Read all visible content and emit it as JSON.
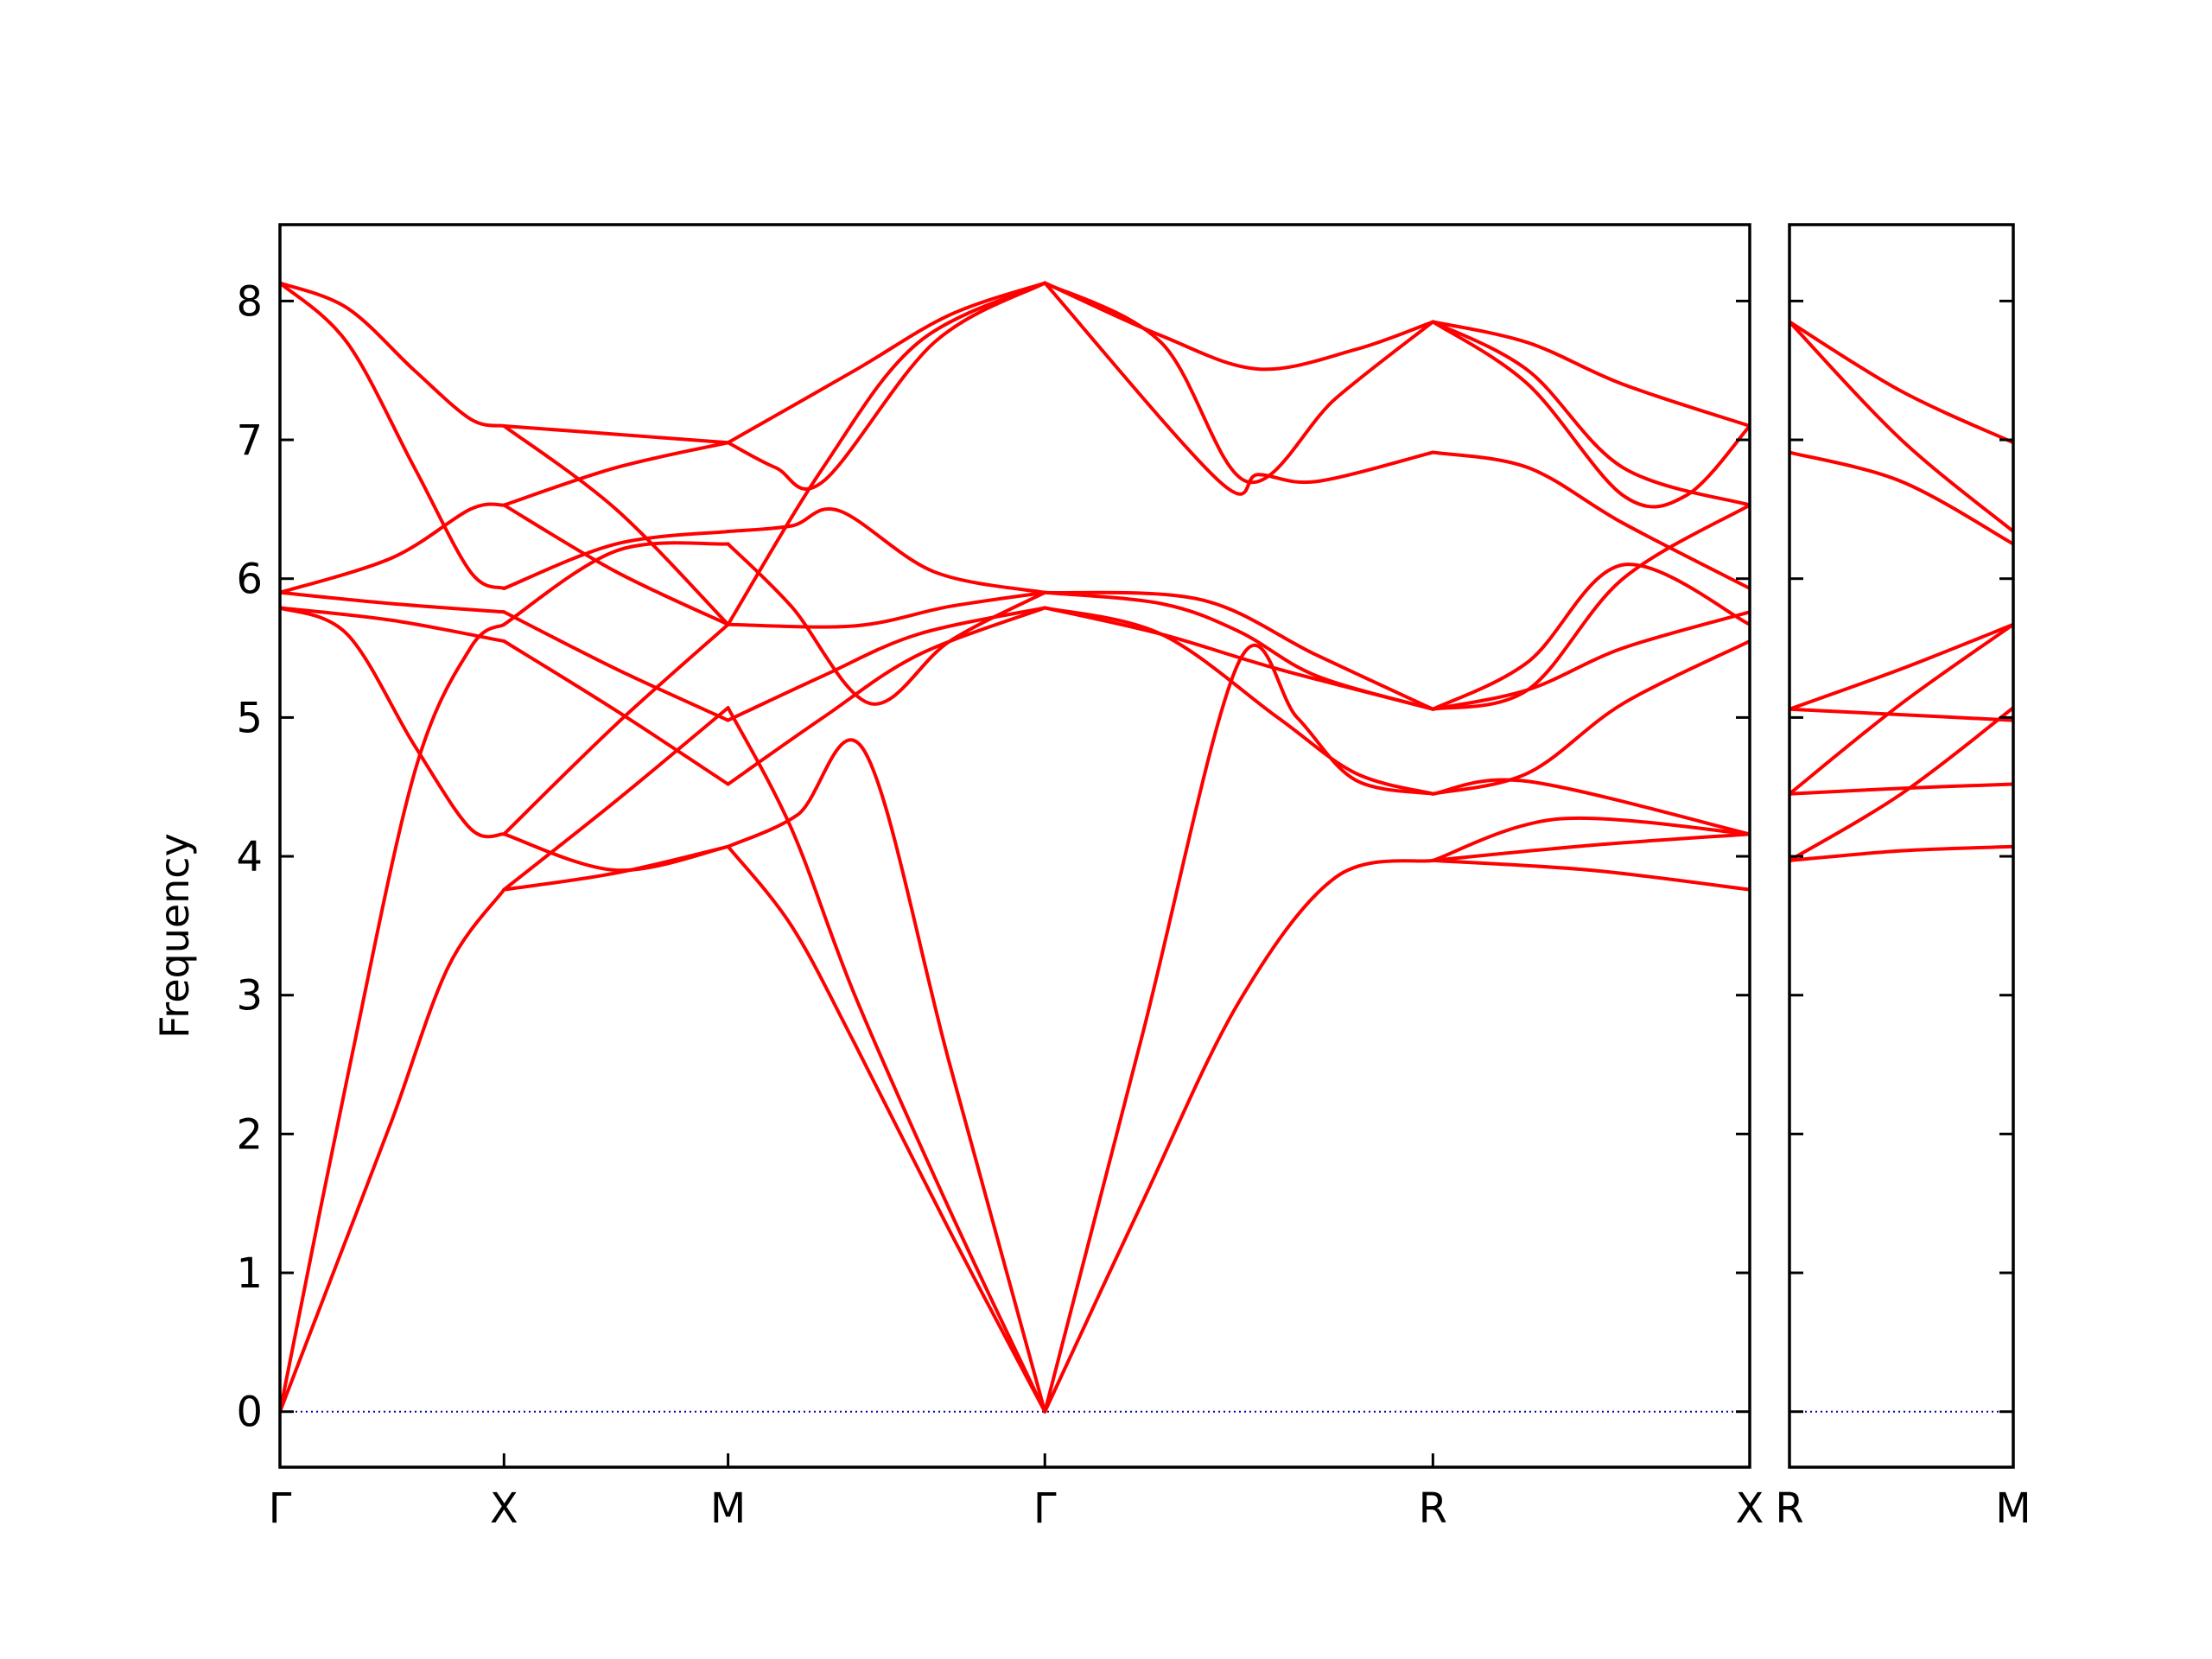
{
  "chart_data": {
    "type": "line",
    "title": "",
    "ylabel": "Frequency",
    "ylim": [
      -0.4,
      8.55
    ],
    "yticks": [
      0,
      1,
      2,
      3,
      4,
      5,
      6,
      7,
      8
    ],
    "colors": {
      "band": "#ff0000",
      "zero_line": "#0000aa"
    },
    "grid": false,
    "panels": [
      {
        "id": "left",
        "path_labels": [
          "Γ",
          "X",
          "M",
          "Γ",
          "R",
          "X"
        ],
        "segment_lengths": [
          1,
          1,
          1.414,
          1.732,
          1.414
        ],
        "bands": [
          {
            "segment": "Γ-X",
            "x": [
              0,
              0.25,
              0.5,
              0.75,
              1
            ],
            "y": [
              0,
              1.05,
              2.1,
              3.2,
              3.76
            ]
          },
          {
            "segment": "Γ-X",
            "x": [
              0,
              0.3,
              0.6,
              0.85,
              1
            ],
            "y": [
              0,
              2.4,
              4.6,
              5.5,
              5.67
            ]
          },
          {
            "segment": "Γ-X",
            "x": [
              0,
              0.3,
              0.6,
              0.85,
              1
            ],
            "y": [
              5.79,
              5.6,
              4.8,
              4.2,
              4.16
            ]
          },
          {
            "segment": "Γ-X",
            "x": [
              0,
              0.5,
              1
            ],
            "y": [
              5.79,
              5.7,
              5.55
            ]
          },
          {
            "segment": "Γ-X",
            "x": [
              0,
              0.5,
              1
            ],
            "y": [
              5.9,
              5.82,
              5.76
            ]
          },
          {
            "segment": "Γ-X",
            "x": [
              0,
              0.5,
              0.85,
              1
            ],
            "y": [
              5.9,
              6.15,
              6.5,
              6.53
            ]
          },
          {
            "segment": "Γ-X",
            "x": [
              0,
              0.3,
              0.6,
              0.85,
              1
            ],
            "y": [
              8.13,
              7.7,
              6.8,
              6.05,
              5.93
            ]
          },
          {
            "segment": "Γ-X",
            "x": [
              0,
              0.3,
              0.6,
              0.85,
              1
            ],
            "y": [
              8.13,
              7.95,
              7.5,
              7.15,
              7.1
            ]
          },
          {
            "segment": "X-M",
            "x": [
              0,
              0.5,
              1
            ],
            "y": [
              3.76,
              3.88,
              4.07
            ]
          },
          {
            "segment": "X-M",
            "x": [
              0,
              0.5,
              1
            ],
            "y": [
              4.16,
              3.9,
              4.07
            ]
          },
          {
            "segment": "X-M",
            "x": [
              0,
              0.5,
              1
            ],
            "y": [
              3.76,
              4.4,
              5.07
            ]
          },
          {
            "segment": "X-M",
            "x": [
              0,
              0.5,
              1
            ],
            "y": [
              4.16,
              4.95,
              5.67
            ]
          },
          {
            "segment": "X-M",
            "x": [
              0,
              0.5,
              1
            ],
            "y": [
              5.55,
              5.05,
              4.52
            ]
          },
          {
            "segment": "X-M",
            "x": [
              0,
              0.5,
              1
            ],
            "y": [
              5.76,
              5.35,
              4.98
            ]
          },
          {
            "segment": "X-M",
            "x": [
              0,
              0.5,
              1
            ],
            "y": [
              5.67,
              6.2,
              6.25
            ]
          },
          {
            "segment": "X-M",
            "x": [
              0,
              0.5,
              1
            ],
            "y": [
              6.53,
              6.05,
              5.67
            ]
          },
          {
            "segment": "X-M",
            "x": [
              0,
              0.5,
              1
            ],
            "y": [
              5.93,
              6.25,
              6.34
            ]
          },
          {
            "segment": "X-M",
            "x": [
              0,
              0.5,
              1
            ],
            "y": [
              6.53,
              6.8,
              6.98
            ]
          },
          {
            "segment": "X-M",
            "x": [
              0,
              0.5,
              1
            ],
            "y": [
              7.1,
              6.5,
              5.67
            ]
          },
          {
            "segment": "X-M",
            "x": [
              0,
              0.5,
              1
            ],
            "y": [
              7.1,
              7.04,
              6.98
            ]
          },
          {
            "segment": "M-Γ",
            "x": [
              0,
              0.2,
              0.4,
              0.7,
              1
            ],
            "y": [
              4.07,
              3.5,
              2.65,
              1.3,
              0
            ]
          },
          {
            "segment": "M-Γ",
            "x": [
              0,
              0.2,
              0.4,
              0.7,
              1
            ],
            "y": [
              5.07,
              4.2,
              3.0,
              1.45,
              0
            ]
          },
          {
            "segment": "M-Γ",
            "x": [
              0,
              0.22,
              0.43,
              0.7,
              1
            ],
            "y": [
              4.07,
              4.3,
              4.76,
              2.5,
              0
            ]
          },
          {
            "segment": "M-Γ",
            "x": [
              0,
              0.3,
              0.6,
              1
            ],
            "y": [
              4.52,
              5.0,
              5.45,
              5.79
            ]
          },
          {
            "segment": "M-Γ",
            "x": [
              0,
              0.3,
              0.6,
              1
            ],
            "y": [
              4.98,
              5.3,
              5.6,
              5.79
            ]
          },
          {
            "segment": "M-Γ",
            "x": [
              0,
              0.2,
              0.45,
              0.7,
              1
            ],
            "y": [
              6.25,
              5.8,
              5.1,
              5.55,
              5.9
            ]
          },
          {
            "segment": "M-Γ",
            "x": [
              0,
              0.4,
              0.7,
              1
            ],
            "y": [
              5.67,
              5.66,
              5.8,
              5.9
            ]
          },
          {
            "segment": "M-Γ",
            "x": [
              0,
              0.3,
              0.6,
              1
            ],
            "y": [
              5.67,
              6.8,
              7.7,
              8.13
            ]
          },
          {
            "segment": "M-Γ",
            "x": [
              0,
              0.2,
              0.35,
              0.65,
              1
            ],
            "y": [
              6.34,
              6.38,
              6.49,
              6.05,
              5.9
            ]
          },
          {
            "segment": "M-Γ",
            "x": [
              0,
              0.15,
              0.3,
              0.65,
              1
            ],
            "y": [
              6.98,
              6.8,
              6.7,
              7.7,
              8.13
            ]
          },
          {
            "segment": "M-Γ",
            "x": [
              0,
              0.4,
              0.7,
              1
            ],
            "y": [
              6.98,
              7.5,
              7.9,
              8.13
            ]
          },
          {
            "segment": "Γ-R",
            "x": [
              0,
              0.25,
              0.5,
              0.75,
              1
            ],
            "y": [
              0,
              1.5,
              2.95,
              3.85,
              3.97
            ]
          },
          {
            "segment": "Γ-R",
            "x": [
              0,
              0.25,
              0.5,
              0.65,
              0.8,
              1
            ],
            "y": [
              0,
              2.7,
              5.4,
              5.0,
              4.55,
              4.45
            ]
          },
          {
            "segment": "Γ-R",
            "x": [
              0,
              0.3,
              0.6,
              0.8,
              1
            ],
            "y": [
              5.79,
              5.6,
              5.0,
              4.6,
              4.45
            ]
          },
          {
            "segment": "Γ-R",
            "x": [
              0,
              0.3,
              0.6,
              1
            ],
            "y": [
              5.79,
              5.6,
              5.35,
              5.06
            ]
          },
          {
            "segment": "Γ-R",
            "x": [
              0,
              0.3,
              0.5,
              0.7,
              1
            ],
            "y": [
              5.9,
              5.82,
              5.62,
              5.3,
              5.06
            ]
          },
          {
            "segment": "Γ-R",
            "x": [
              0,
              0.4,
              0.7,
              1
            ],
            "y": [
              5.9,
              5.85,
              5.45,
              5.06
            ]
          },
          {
            "segment": "Γ-R",
            "x": [
              0,
              0.45,
              0.55,
              0.7,
              1
            ],
            "y": [
              8.13,
              6.7,
              6.75,
              6.7,
              6.91
            ]
          },
          {
            "segment": "Γ-R",
            "x": [
              0,
              0.3,
              0.55,
              0.8,
              1
            ],
            "y": [
              8.13,
              7.75,
              7.51,
              7.65,
              7.85
            ]
          },
          {
            "segment": "Γ-R",
            "x": [
              0,
              0.3,
              0.52,
              0.75,
              1
            ],
            "y": [
              8.13,
              7.7,
              6.7,
              7.3,
              7.85
            ]
          },
          {
            "segment": "R-X",
            "x": [
              0,
              0.5,
              1
            ],
            "y": [
              3.97,
              3.9,
              3.76
            ]
          },
          {
            "segment": "R-X",
            "x": [
              0,
              0.5,
              1
            ],
            "y": [
              3.97,
              4.08,
              4.16
            ]
          },
          {
            "segment": "R-X",
            "x": [
              0,
              0.4,
              1
            ],
            "y": [
              3.97,
              4.27,
              4.16
            ]
          },
          {
            "segment": "R-X",
            "x": [
              0,
              0.3,
              1
            ],
            "y": [
              4.45,
              4.54,
              4.16
            ]
          },
          {
            "segment": "R-X",
            "x": [
              0,
              0.3,
              0.6,
              1
            ],
            "y": [
              4.45,
              4.6,
              5.1,
              5.55
            ]
          },
          {
            "segment": "R-X",
            "x": [
              0,
              0.3,
              0.6,
              1
            ],
            "y": [
              5.06,
              5.2,
              5.5,
              5.76
            ]
          },
          {
            "segment": "R-X",
            "x": [
              0,
              0.3,
              0.6,
              1
            ],
            "y": [
              5.06,
              5.4,
              6.1,
              5.67
            ]
          },
          {
            "segment": "R-X",
            "x": [
              0,
              0.3,
              0.6,
              1
            ],
            "y": [
              5.06,
              5.2,
              6.0,
              6.53
            ]
          },
          {
            "segment": "R-X",
            "x": [
              0,
              0.3,
              0.6,
              1
            ],
            "y": [
              6.91,
              6.8,
              6.4,
              5.93
            ]
          },
          {
            "segment": "R-X",
            "x": [
              0,
              0.3,
              0.6,
              1
            ],
            "y": [
              7.85,
              7.5,
              6.8,
              6.53
            ]
          },
          {
            "segment": "R-X",
            "x": [
              0,
              0.3,
              0.6,
              0.8,
              1
            ],
            "y": [
              7.85,
              7.4,
              6.6,
              6.6,
              7.1
            ]
          },
          {
            "segment": "R-X",
            "x": [
              0,
              0.3,
              0.6,
              1
            ],
            "y": [
              7.85,
              7.7,
              7.4,
              7.1
            ]
          }
        ]
      },
      {
        "id": "right",
        "path_labels": [
          "R",
          "M"
        ],
        "segment_lengths": [
          1.414
        ],
        "bands": [
          {
            "segment": "R-M",
            "x": [
              0,
              0.5,
              1
            ],
            "y": [
              3.97,
              4.04,
              4.07
            ]
          },
          {
            "segment": "R-M",
            "x": [
              0,
              0.5,
              1
            ],
            "y": [
              3.97,
              4.45,
              5.07
            ]
          },
          {
            "segment": "R-M",
            "x": [
              0,
              0.5,
              1
            ],
            "y": [
              4.45,
              4.49,
              4.52
            ]
          },
          {
            "segment": "R-M",
            "x": [
              0,
              0.5,
              1
            ],
            "y": [
              4.45,
              5.1,
              5.67
            ]
          },
          {
            "segment": "R-M",
            "x": [
              0,
              0.5,
              1
            ],
            "y": [
              5.06,
              5.02,
              4.98
            ]
          },
          {
            "segment": "R-M",
            "x": [
              0,
              0.5,
              1
            ],
            "y": [
              5.06,
              5.35,
              5.67
            ]
          },
          {
            "segment": "R-M",
            "x": [
              0,
              0.5,
              1
            ],
            "y": [
              6.91,
              6.7,
              6.25
            ]
          },
          {
            "segment": "R-M",
            "x": [
              0,
              0.5,
              1
            ],
            "y": [
              7.85,
              7.0,
              6.34
            ]
          },
          {
            "segment": "R-M",
            "x": [
              0,
              0.5,
              1
            ],
            "y": [
              7.85,
              7.35,
              6.98
            ]
          }
        ]
      }
    ]
  }
}
